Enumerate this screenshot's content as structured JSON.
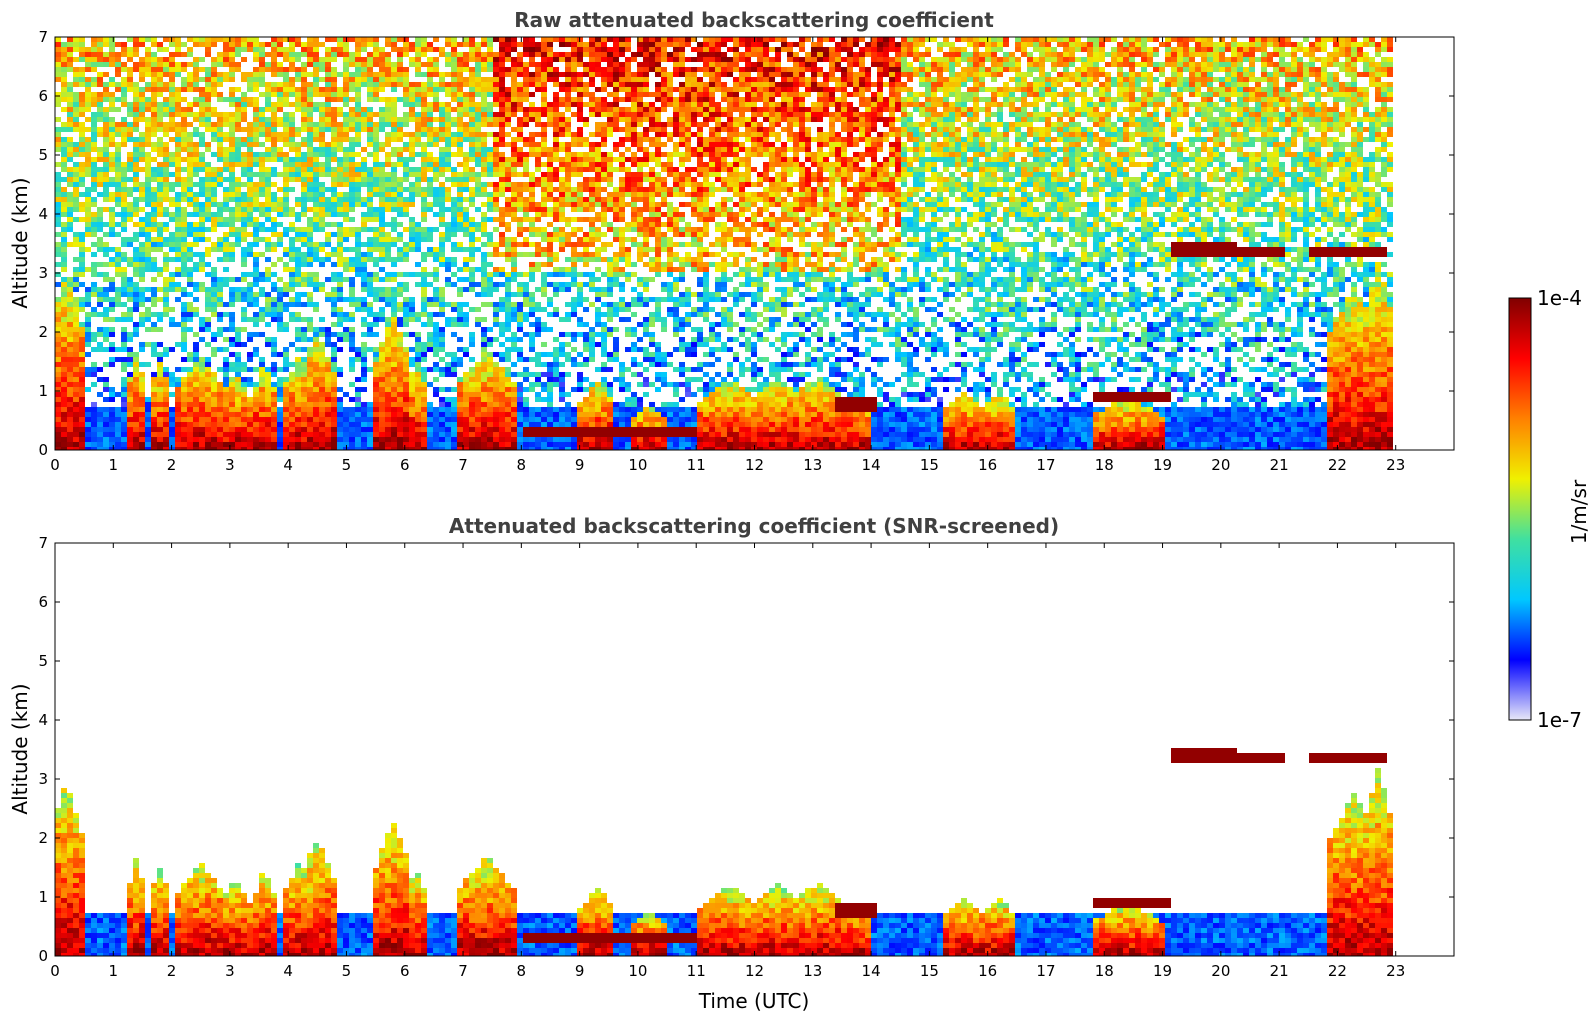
{
  "colors": {
    "colormap": [
      "#e8e8f8",
      "#0000ff",
      "#00c8ff",
      "#40e0a0",
      "#f0f000",
      "#ff8000",
      "#ff0000",
      "#800000"
    ],
    "frame": "#000000",
    "title": "#404040"
  },
  "colorbar": {
    "label": "1/m/sr",
    "min_label": "1e-7",
    "max_label": "1e-4",
    "scale": "log",
    "range": [
      1e-07,
      0.0001
    ]
  },
  "chart_data": [
    {
      "type": "heatmap",
      "title": "Raw attenuated backscattering coefficient",
      "xlabel": "",
      "ylabel": "Altitude (km)",
      "xlim": [
        0,
        24
      ],
      "ylim": [
        0,
        7
      ],
      "x_ticks": [
        "0",
        "1",
        "2",
        "3",
        "4",
        "5",
        "6",
        "7",
        "8",
        "9",
        "10",
        "11",
        "12",
        "13",
        "14",
        "15",
        "16",
        "17",
        "18",
        "19",
        "20",
        "21",
        "22",
        "23"
      ],
      "y_ticks": [
        "0",
        "1",
        "2",
        "3",
        "4",
        "5",
        "6",
        "7"
      ],
      "data_end_time": 23,
      "grid": false,
      "cloud_layers": [
        {
          "time_start": 19.1,
          "time_end": 20.3,
          "altitude": 3.4,
          "level": "1e-4"
        },
        {
          "time_start": 20.3,
          "time_end": 21.1,
          "altitude": 3.35,
          "level": "1e-4"
        },
        {
          "time_start": 21.5,
          "time_end": 22.9,
          "altitude": 3.35,
          "level": "1e-4"
        },
        {
          "time_start": 17.8,
          "time_end": 19.1,
          "altitude": 0.9,
          "level": "1e-4"
        },
        {
          "time_start": 8.0,
          "time_end": 11.0,
          "altitude": 0.3,
          "level": "1e-4"
        },
        {
          "time_start": 13.4,
          "time_end": 14.1,
          "altitude": 0.8,
          "level": "1e-4"
        }
      ]
    },
    {
      "type": "heatmap",
      "title": "Attenuated backscattering coefficient (SNR-screened)",
      "xlabel": "Time (UTC)",
      "ylabel": "Altitude (km)",
      "xlim": [
        0,
        24
      ],
      "ylim": [
        0,
        7
      ],
      "x_ticks": [
        "0",
        "1",
        "2",
        "3",
        "4",
        "5",
        "6",
        "7",
        "8",
        "9",
        "10",
        "11",
        "12",
        "13",
        "14",
        "15",
        "16",
        "17",
        "18",
        "19",
        "20",
        "21",
        "22",
        "23"
      ],
      "y_ticks": [
        "0",
        "1",
        "2",
        "3",
        "4",
        "5",
        "6",
        "7"
      ],
      "data_end_time": 23,
      "grid": false
    }
  ]
}
